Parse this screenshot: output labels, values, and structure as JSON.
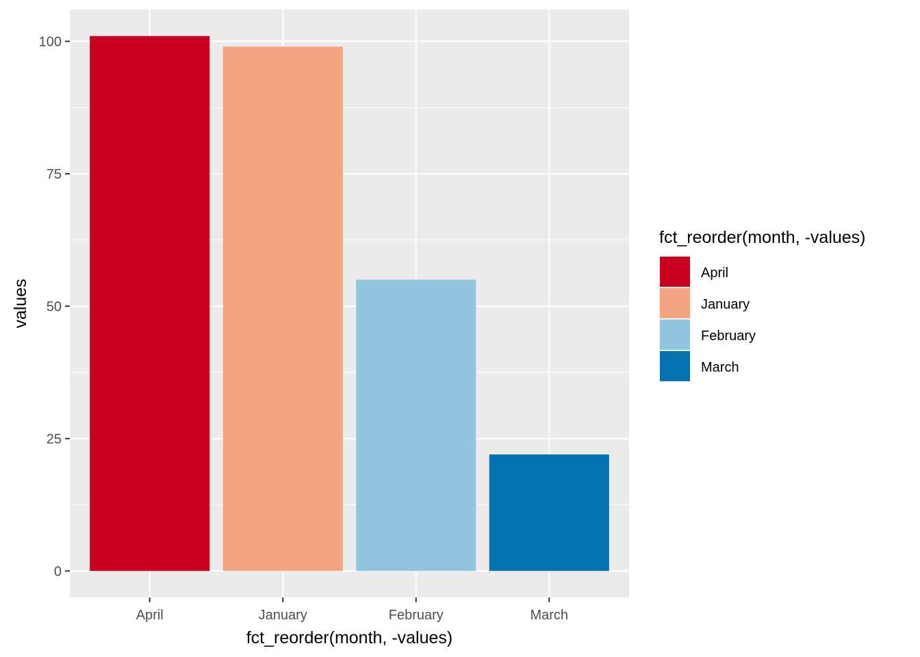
{
  "chart_data": {
    "type": "bar",
    "categories": [
      "April",
      "January",
      "February",
      "March"
    ],
    "values": [
      101,
      99,
      55,
      22
    ],
    "colors": [
      "#CA0020",
      "#F4A582",
      "#92C5DE",
      "#0571B0"
    ],
    "xlabel": "fct_reorder(month, -values)",
    "ylabel": "values",
    "ylim": [
      -5,
      106
    ],
    "yticks": [
      0,
      25,
      50,
      75,
      100
    ],
    "ytick_labels": [
      "0",
      "25",
      "50",
      "75",
      "100"
    ],
    "grid": true,
    "panel_background": "#EBEBEB",
    "grid_color": "#FFFFFF",
    "legend": {
      "title": "fct_reorder(month, -values)",
      "position": "right",
      "entries": [
        "April",
        "January",
        "February",
        "March"
      ]
    }
  }
}
